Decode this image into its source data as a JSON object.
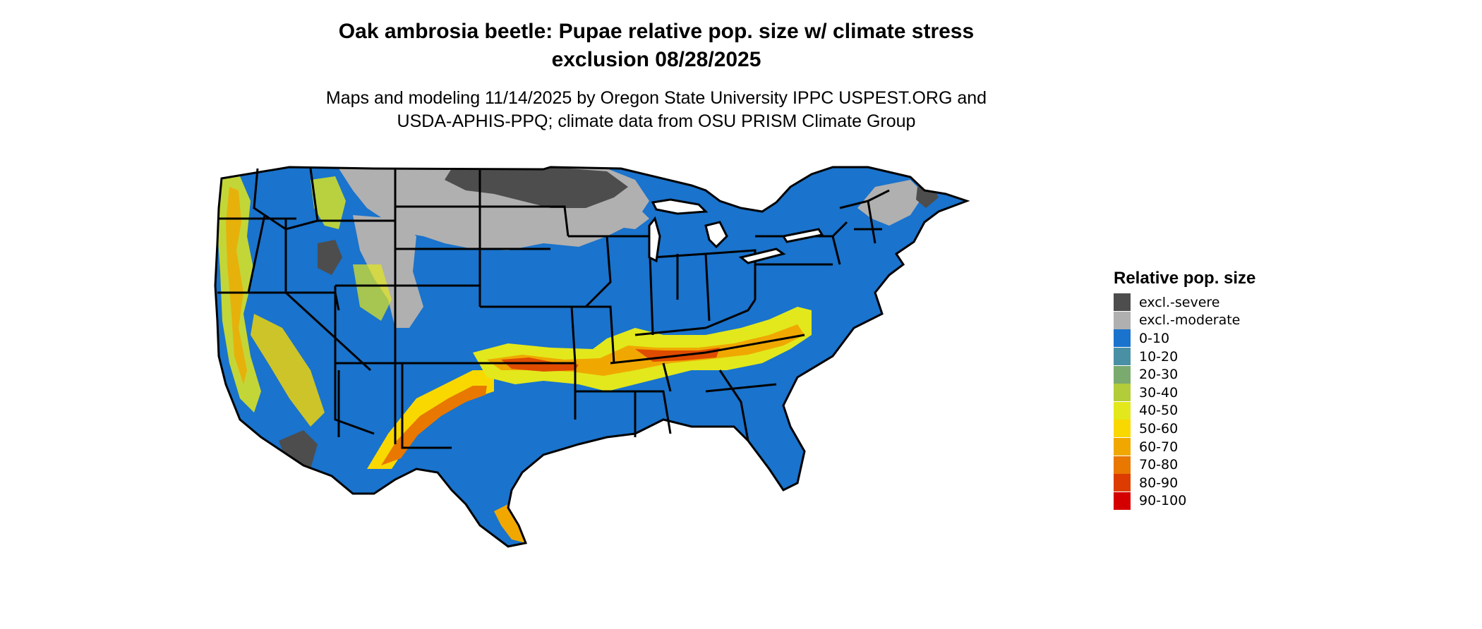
{
  "header": {
    "title_line1": "Oak ambrosia beetle: Pupae relative pop. size w/ climate stress",
    "title_line2": "exclusion 08/28/2025",
    "subtitle_line1": "Maps and modeling 11/14/2025 by Oregon State University IPPC USPEST.ORG and",
    "subtitle_line2": "USDA-APHIS-PPQ; climate data from OSU PRISM Climate Group"
  },
  "legend": {
    "title": "Relative pop. size",
    "items": [
      {
        "label": "excl.-severe",
        "color": "#4d4d4d"
      },
      {
        "label": "excl.-moderate",
        "color": "#b0b0b0"
      },
      {
        "label": "0-10",
        "color": "#1a73cc"
      },
      {
        "label": "10-20",
        "color": "#4a90a4"
      },
      {
        "label": "20-30",
        "color": "#7aaa6e"
      },
      {
        "label": "30-40",
        "color": "#b2cc3a"
      },
      {
        "label": "40-50",
        "color": "#e2e81c"
      },
      {
        "label": "50-60",
        "color": "#f9d800"
      },
      {
        "label": "60-70",
        "color": "#f0a800"
      },
      {
        "label": "70-80",
        "color": "#e87800"
      },
      {
        "label": "80-90",
        "color": "#dc3c00"
      },
      {
        "label": "90-100",
        "color": "#d40000"
      }
    ]
  }
}
